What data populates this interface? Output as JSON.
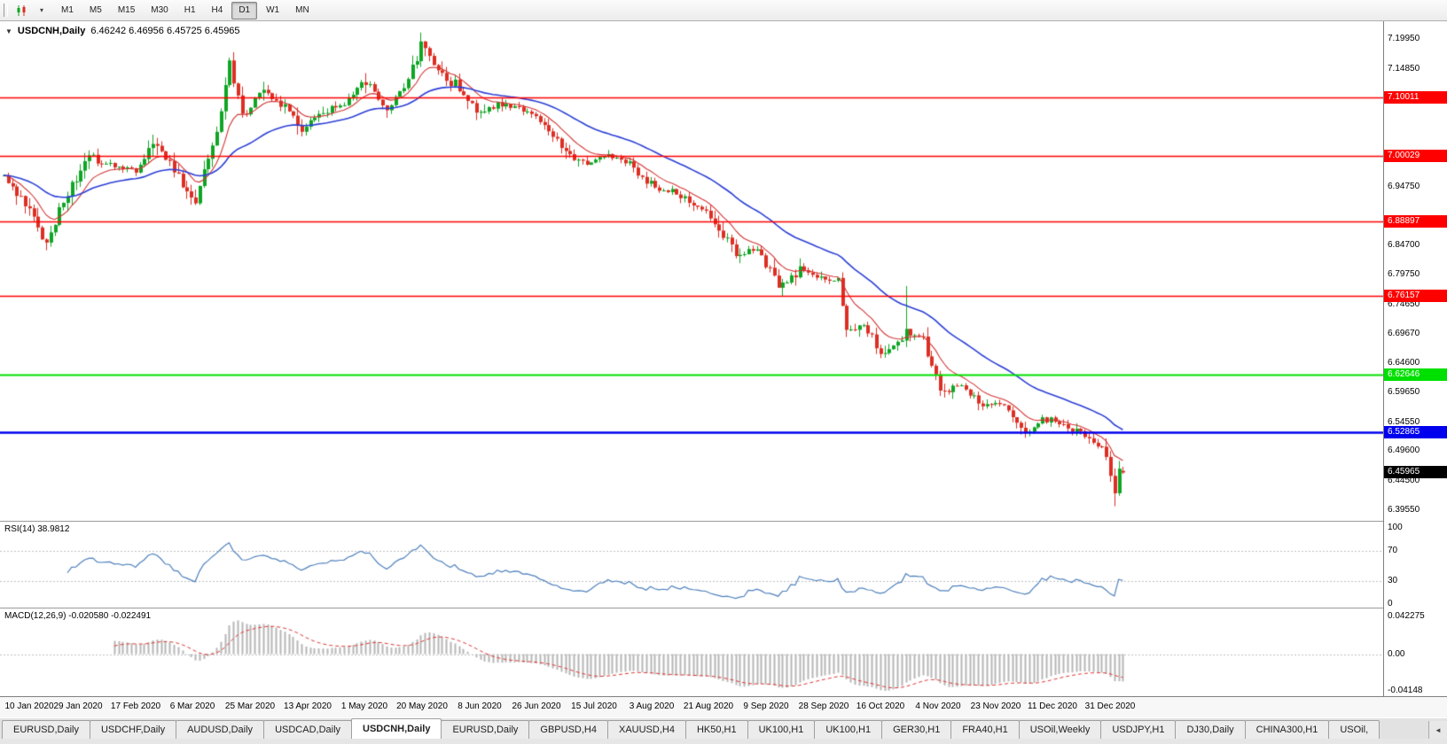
{
  "toolbar": {
    "timeframes": [
      {
        "label": "M1",
        "active": false
      },
      {
        "label": "M5",
        "active": false
      },
      {
        "label": "M15",
        "active": false
      },
      {
        "label": "M30",
        "active": false
      },
      {
        "label": "H1",
        "active": false
      },
      {
        "label": "H4",
        "active": false
      },
      {
        "label": "D1",
        "active": true
      },
      {
        "label": "W1",
        "active": false
      },
      {
        "label": "MN",
        "active": false
      }
    ]
  },
  "chart_header": {
    "collapse_icon": "▼",
    "symbol": "USDCNH,Daily",
    "ohlc": "6.46242 6.46956 6.45725 6.45965"
  },
  "bottom_tabs": {
    "scroll_left_icon": "◄",
    "items": [
      {
        "label": "EURUSD,Daily",
        "active": false
      },
      {
        "label": "USDCHF,Daily",
        "active": false
      },
      {
        "label": "AUDUSD,Daily",
        "active": false
      },
      {
        "label": "USDCAD,Daily",
        "active": false
      },
      {
        "label": "USDCNH,Daily",
        "active": true
      },
      {
        "label": "EURUSD,Daily",
        "active": false
      },
      {
        "label": "GBPUSD,H4",
        "active": false
      },
      {
        "label": "XAUUSD,H4",
        "active": false
      },
      {
        "label": "HK50,H1",
        "active": false
      },
      {
        "label": "UK100,H1",
        "active": false
      },
      {
        "label": "UK100,H1",
        "active": false
      },
      {
        "label": "GER30,H1",
        "active": false
      },
      {
        "label": "FRA40,H1",
        "active": false
      },
      {
        "label": "USOil,Weekly",
        "active": false
      },
      {
        "label": "USDJPY,H1",
        "active": false
      },
      {
        "label": "DJ30,Daily",
        "active": false
      },
      {
        "label": "CHINA300,H1",
        "active": false
      },
      {
        "label": "USOil,",
        "active": false
      }
    ]
  },
  "chart_data": {
    "type": "candlestick",
    "symbol": "USDCNH",
    "period": "Daily",
    "n_bars": 264,
    "price_axis": {
      "min": 6.3772,
      "max": 7.2301,
      "ticks": [
        "7.19950",
        "7.14850",
        "6.94750",
        "6.84700",
        "6.79750",
        "6.74650",
        "6.69670",
        "6.64600",
        "6.59650",
        "6.54550",
        "6.49600",
        "6.44500",
        "6.39550"
      ]
    },
    "levels": [
      {
        "value": 7.10011,
        "label": "7.10011",
        "color": "#ff0000",
        "width": 1.4
      },
      {
        "value": 7.00029,
        "label": "7.00029",
        "color": "#ff0000",
        "width": 1.4
      },
      {
        "value": 6.88897,
        "label": "6.88897",
        "color": "#ff0000",
        "width": 1.4
      },
      {
        "value": 6.76157,
        "label": "6.76157",
        "color": "#ff0000",
        "width": 1.4
      },
      {
        "value": 6.62646,
        "label": "6.62646",
        "color": "#00e000",
        "width": 2
      },
      {
        "value": 6.52865,
        "label": "6.52865",
        "color": "#0000ee",
        "width": 2.4
      }
    ],
    "current_price": {
      "value": 6.45965,
      "label": "6.45965",
      "color": "#000000"
    },
    "x_labels": [
      "10 Jan 2020",
      "29 Jan 2020",
      "17 Feb 2020",
      "6 Mar 2020",
      "25 Mar 2020",
      "13 Apr 2020",
      "1 May 2020",
      "20 May 2020",
      "8 Jun 2020",
      "26 Jun 2020",
      "15 Jul 2020",
      "3 Aug 2020",
      "21 Aug 2020",
      "9 Sep 2020",
      "28 Sep 2020",
      "16 Oct 2020",
      "4 Nov 2020",
      "23 Nov 2020",
      "11 Dec 2020",
      "31 Dec 2020"
    ],
    "price_path": [
      [
        0,
        6.966
      ],
      [
        6,
        6.905
      ],
      [
        10,
        6.845
      ],
      [
        14,
        6.925
      ],
      [
        20,
        6.995
      ],
      [
        26,
        6.982
      ],
      [
        31,
        6.975
      ],
      [
        36,
        7.025
      ],
      [
        40,
        6.968
      ],
      [
        45,
        6.928
      ],
      [
        50,
        7.045
      ],
      [
        53,
        7.158
      ],
      [
        56,
        7.07
      ],
      [
        60,
        7.11
      ],
      [
        65,
        7.09
      ],
      [
        70,
        7.05
      ],
      [
        75,
        7.078
      ],
      [
        80,
        7.09
      ],
      [
        85,
        7.128
      ],
      [
        90,
        7.082
      ],
      [
        95,
        7.125
      ],
      [
        98,
        7.188
      ],
      [
        101,
        7.155
      ],
      [
        107,
        7.115
      ],
      [
        112,
        7.072
      ],
      [
        117,
        7.09
      ],
      [
        122,
        7.078
      ],
      [
        127,
        7.058
      ],
      [
        132,
        7.003
      ],
      [
        137,
        6.99
      ],
      [
        142,
        7.002
      ],
      [
        147,
        6.988
      ],
      [
        152,
        6.948
      ],
      [
        157,
        6.94
      ],
      [
        162,
        6.918
      ],
      [
        167,
        6.888
      ],
      [
        172,
        6.832
      ],
      [
        177,
        6.842
      ],
      [
        182,
        6.772
      ],
      [
        187,
        6.808
      ],
      [
        192,
        6.788
      ],
      [
        196,
        6.79
      ],
      [
        198,
        6.708
      ],
      [
        202,
        6.71
      ],
      [
        207,
        6.66
      ],
      [
        212,
        6.702
      ],
      [
        216,
        6.69
      ],
      [
        220,
        6.6
      ],
      [
        225,
        6.606
      ],
      [
        230,
        6.578
      ],
      [
        235,
        6.572
      ],
      [
        240,
        6.53
      ],
      [
        245,
        6.552
      ],
      [
        250,
        6.538
      ],
      [
        255,
        6.518
      ],
      [
        258,
        6.498
      ],
      [
        260,
        6.455
      ],
      [
        261,
        6.432
      ],
      [
        262,
        6.462
      ],
      [
        263,
        6.4597
      ]
    ],
    "wick_events": [
      {
        "bar": 10,
        "low": 6.839
      },
      {
        "bar": 53,
        "high": 7.168
      },
      {
        "bar": 98,
        "high": 7.1985
      },
      {
        "bar": 212,
        "high": 6.778
      },
      {
        "bar": 261,
        "low": 6.402
      }
    ],
    "last_candle": {
      "o": 6.46242,
      "h": 6.46956,
      "l": 6.45725,
      "c": 6.45965
    },
    "ma": [
      {
        "period": 10,
        "color": "#d23535",
        "width": 1.1
      },
      {
        "period": 34,
        "color": "#2b3fd6",
        "width": 1.6
      }
    ],
    "colors": {
      "up": "#0fa524",
      "down": "#dd2e23",
      "background": "#ffffff"
    },
    "rsi": {
      "label": "RSI(14) 38.9812",
      "period": 14,
      "last_value": 38.9812,
      "color": "#4f81bd",
      "levels": [
        70,
        30
      ],
      "axis": [
        "100",
        "70",
        "30",
        "0"
      ],
      "axis_values": [
        100,
        70,
        30,
        0
      ]
    },
    "macd": {
      "label": "MACD(12,26,9) -0.020580 -0.022491",
      "fast": 12,
      "slow": 26,
      "signal": 9,
      "macd_value": -0.02058,
      "signal_value": -0.022491,
      "range": [
        -0.0415,
        0.0425
      ],
      "histogram_color": "#b6b6b6",
      "signal_color": "#e03535",
      "axis": [
        "0.042275",
        "0.00",
        "-0.04148"
      ],
      "axis_values": [
        0.042275,
        0,
        -0.04148
      ]
    }
  }
}
